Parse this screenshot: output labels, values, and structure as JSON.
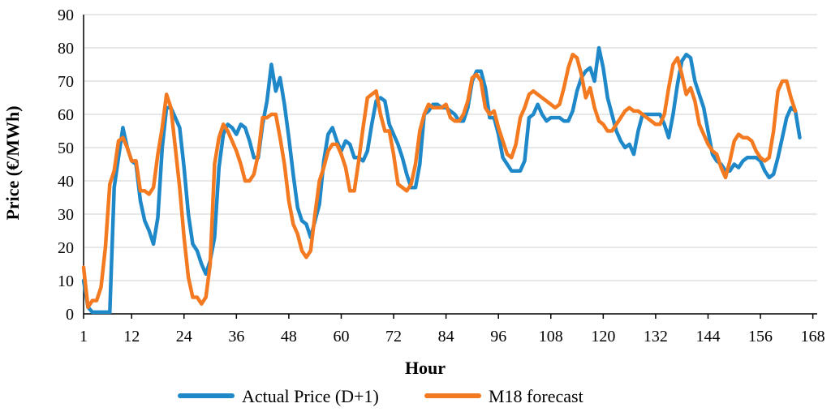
{
  "chart_data": {
    "type": "line",
    "title": "",
    "xlabel": "Hour",
    "ylabel": "Price (€/MWh)",
    "xlim": [
      1,
      169
    ],
    "ylim": [
      0,
      90
    ],
    "grid": true,
    "legend_position": "bottom",
    "x_ticks": [
      1,
      12,
      24,
      36,
      48,
      60,
      72,
      84,
      96,
      108,
      120,
      132,
      144,
      156,
      168
    ],
    "y_ticks": [
      0,
      10,
      20,
      30,
      40,
      50,
      60,
      70,
      80,
      90
    ],
    "x_tick_labels": [
      "1",
      "12",
      "24",
      "36",
      "48",
      "60",
      "72",
      "84",
      "96",
      "108",
      "120",
      "132",
      "144",
      "156",
      "168"
    ],
    "y_tick_labels": [
      "0",
      "10",
      "20",
      "30",
      "40",
      "50",
      "60",
      "70",
      "80",
      "90"
    ],
    "series": [
      {
        "name": "Actual Price (D+1)",
        "color": "#1f88c9",
        "points": [
          [
            1,
            10
          ],
          [
            2,
            2
          ],
          [
            3,
            0.5
          ],
          [
            4,
            0.5
          ],
          [
            5,
            0.5
          ],
          [
            6,
            0.5
          ],
          [
            7,
            0.5
          ],
          [
            8,
            38
          ],
          [
            9,
            47
          ],
          [
            10,
            56
          ],
          [
            11,
            50
          ],
          [
            12,
            46
          ],
          [
            13,
            45
          ],
          [
            14,
            34
          ],
          [
            15,
            28
          ],
          [
            16,
            25
          ],
          [
            17,
            21
          ],
          [
            18,
            29
          ],
          [
            19,
            50
          ],
          [
            20,
            62
          ],
          [
            21,
            62
          ],
          [
            22,
            59
          ],
          [
            23,
            56
          ],
          [
            24,
            44
          ],
          [
            25,
            30
          ],
          [
            26,
            21
          ],
          [
            27,
            19
          ],
          [
            28,
            15
          ],
          [
            29,
            12
          ],
          [
            30,
            16
          ],
          [
            31,
            23
          ],
          [
            32,
            44
          ],
          [
            33,
            54
          ],
          [
            34,
            57
          ],
          [
            35,
            56
          ],
          [
            36,
            54
          ],
          [
            37,
            57
          ],
          [
            38,
            56
          ],
          [
            39,
            52
          ],
          [
            40,
            47
          ],
          [
            41,
            47
          ],
          [
            42,
            57
          ],
          [
            43,
            64
          ],
          [
            44,
            75
          ],
          [
            45,
            67
          ],
          [
            46,
            71
          ],
          [
            47,
            63
          ],
          [
            48,
            53
          ],
          [
            49,
            42
          ],
          [
            50,
            32
          ],
          [
            51,
            28
          ],
          [
            52,
            27
          ],
          [
            53,
            23
          ],
          [
            54,
            28
          ],
          [
            55,
            33
          ],
          [
            56,
            46
          ],
          [
            57,
            54
          ],
          [
            58,
            56
          ],
          [
            59,
            52
          ],
          [
            60,
            49
          ],
          [
            61,
            52
          ],
          [
            62,
            51
          ],
          [
            63,
            47
          ],
          [
            64,
            47
          ],
          [
            65,
            46
          ],
          [
            66,
            49
          ],
          [
            67,
            57
          ],
          [
            68,
            64
          ],
          [
            69,
            65
          ],
          [
            70,
            64
          ],
          [
            71,
            57
          ],
          [
            72,
            54
          ],
          [
            73,
            51
          ],
          [
            74,
            47
          ],
          [
            75,
            42
          ],
          [
            76,
            38
          ],
          [
            77,
            38
          ],
          [
            78,
            45
          ],
          [
            79,
            60
          ],
          [
            80,
            61
          ],
          [
            81,
            63
          ],
          [
            82,
            63
          ],
          [
            83,
            62
          ],
          [
            84,
            62
          ],
          [
            85,
            61
          ],
          [
            86,
            60
          ],
          [
            87,
            58
          ],
          [
            88,
            58
          ],
          [
            89,
            62
          ],
          [
            90,
            70
          ],
          [
            91,
            73
          ],
          [
            92,
            73
          ],
          [
            93,
            68
          ],
          [
            94,
            59
          ],
          [
            95,
            59
          ],
          [
            96,
            54
          ],
          [
            97,
            47
          ],
          [
            98,
            45
          ],
          [
            99,
            43
          ],
          [
            100,
            43
          ],
          [
            101,
            43
          ],
          [
            102,
            46
          ],
          [
            103,
            59
          ],
          [
            104,
            60
          ],
          [
            105,
            63
          ],
          [
            106,
            60
          ],
          [
            107,
            58
          ],
          [
            108,
            59
          ],
          [
            109,
            59
          ],
          [
            110,
            59
          ],
          [
            111,
            58
          ],
          [
            112,
            58
          ],
          [
            113,
            61
          ],
          [
            114,
            67
          ],
          [
            115,
            71
          ],
          [
            116,
            73
          ],
          [
            117,
            74
          ],
          [
            118,
            70
          ],
          [
            119,
            80
          ],
          [
            120,
            74
          ],
          [
            121,
            65
          ],
          [
            122,
            60
          ],
          [
            123,
            55
          ],
          [
            124,
            52
          ],
          [
            125,
            50
          ],
          [
            126,
            51
          ],
          [
            127,
            48
          ],
          [
            128,
            55
          ],
          [
            129,
            60
          ],
          [
            130,
            60
          ],
          [
            131,
            60
          ],
          [
            132,
            60
          ],
          [
            133,
            60
          ],
          [
            134,
            57
          ],
          [
            135,
            53
          ],
          [
            136,
            60
          ],
          [
            137,
            69
          ],
          [
            138,
            76
          ],
          [
            139,
            78
          ],
          [
            140,
            77
          ],
          [
            141,
            70
          ],
          [
            142,
            66
          ],
          [
            143,
            62
          ],
          [
            144,
            55
          ],
          [
            145,
            48
          ],
          [
            146,
            46
          ],
          [
            147,
            45
          ],
          [
            148,
            43
          ],
          [
            149,
            43
          ],
          [
            150,
            45
          ],
          [
            151,
            44
          ],
          [
            152,
            46
          ],
          [
            153,
            47
          ],
          [
            154,
            47
          ],
          [
            155,
            47
          ],
          [
            156,
            46
          ],
          [
            157,
            43
          ],
          [
            158,
            41
          ],
          [
            159,
            42
          ],
          [
            160,
            47
          ],
          [
            161,
            53
          ],
          [
            162,
            59
          ],
          [
            163,
            62
          ],
          [
            164,
            61
          ],
          [
            165,
            53
          ]
        ]
      },
      {
        "name": "M18 forecast",
        "color": "#f47a21",
        "points": [
          [
            1,
            14
          ],
          [
            2,
            2
          ],
          [
            3,
            4
          ],
          [
            4,
            4
          ],
          [
            5,
            8
          ],
          [
            6,
            20
          ],
          [
            7,
            39
          ],
          [
            8,
            43
          ],
          [
            9,
            52
          ],
          [
            10,
            53
          ],
          [
            11,
            50
          ],
          [
            12,
            46
          ],
          [
            13,
            46
          ],
          [
            14,
            37
          ],
          [
            15,
            37
          ],
          [
            16,
            36
          ],
          [
            17,
            38
          ],
          [
            18,
            48
          ],
          [
            19,
            56
          ],
          [
            20,
            66
          ],
          [
            21,
            62
          ],
          [
            22,
            50
          ],
          [
            23,
            38
          ],
          [
            24,
            23
          ],
          [
            25,
            11
          ],
          [
            26,
            5
          ],
          [
            27,
            5
          ],
          [
            28,
            3
          ],
          [
            29,
            5
          ],
          [
            30,
            15
          ],
          [
            31,
            45
          ],
          [
            32,
            53
          ],
          [
            33,
            57
          ],
          [
            34,
            55
          ],
          [
            35,
            52
          ],
          [
            36,
            49
          ],
          [
            37,
            45
          ],
          [
            38,
            40
          ],
          [
            39,
            40
          ],
          [
            40,
            42
          ],
          [
            41,
            48
          ],
          [
            42,
            59
          ],
          [
            43,
            59
          ],
          [
            44,
            60
          ],
          [
            45,
            60
          ],
          [
            46,
            53
          ],
          [
            47,
            45
          ],
          [
            48,
            34
          ],
          [
            49,
            27
          ],
          [
            50,
            24
          ],
          [
            51,
            19
          ],
          [
            52,
            17
          ],
          [
            53,
            19
          ],
          [
            54,
            30
          ],
          [
            55,
            40
          ],
          [
            56,
            44
          ],
          [
            57,
            49
          ],
          [
            58,
            51
          ],
          [
            59,
            51
          ],
          [
            60,
            48
          ],
          [
            61,
            44
          ],
          [
            62,
            37
          ],
          [
            63,
            37
          ],
          [
            64,
            46
          ],
          [
            65,
            56
          ],
          [
            66,
            65
          ],
          [
            67,
            66
          ],
          [
            68,
            67
          ],
          [
            69,
            60
          ],
          [
            70,
            55
          ],
          [
            71,
            55
          ],
          [
            72,
            48
          ],
          [
            73,
            39
          ],
          [
            74,
            38
          ],
          [
            75,
            37
          ],
          [
            76,
            39
          ],
          [
            77,
            45
          ],
          [
            78,
            55
          ],
          [
            79,
            60
          ],
          [
            80,
            63
          ],
          [
            81,
            62
          ],
          [
            82,
            62
          ],
          [
            83,
            62
          ],
          [
            84,
            63
          ],
          [
            85,
            59
          ],
          [
            86,
            58
          ],
          [
            87,
            58
          ],
          [
            88,
            60
          ],
          [
            89,
            64
          ],
          [
            90,
            71
          ],
          [
            91,
            72
          ],
          [
            92,
            70
          ],
          [
            93,
            62
          ],
          [
            94,
            60
          ],
          [
            95,
            61
          ],
          [
            96,
            56
          ],
          [
            97,
            52
          ],
          [
            98,
            48
          ],
          [
            99,
            47
          ],
          [
            100,
            51
          ],
          [
            101,
            59
          ],
          [
            102,
            62
          ],
          [
            103,
            66
          ],
          [
            104,
            67
          ],
          [
            105,
            66
          ],
          [
            106,
            65
          ],
          [
            107,
            64
          ],
          [
            108,
            63
          ],
          [
            109,
            62
          ],
          [
            110,
            63
          ],
          [
            111,
            68
          ],
          [
            112,
            74
          ],
          [
            113,
            78
          ],
          [
            114,
            77
          ],
          [
            115,
            72
          ],
          [
            116,
            65
          ],
          [
            117,
            68
          ],
          [
            118,
            62
          ],
          [
            119,
            58
          ],
          [
            120,
            57
          ],
          [
            121,
            55
          ],
          [
            122,
            55
          ],
          [
            123,
            57
          ],
          [
            124,
            59
          ],
          [
            125,
            61
          ],
          [
            126,
            62
          ],
          [
            127,
            61
          ],
          [
            128,
            61
          ],
          [
            129,
            60
          ],
          [
            130,
            59
          ],
          [
            131,
            58
          ],
          [
            132,
            57
          ],
          [
            133,
            57
          ],
          [
            134,
            60
          ],
          [
            135,
            68
          ],
          [
            136,
            75
          ],
          [
            137,
            77
          ],
          [
            138,
            72
          ],
          [
            139,
            66
          ],
          [
            140,
            68
          ],
          [
            141,
            64
          ],
          [
            142,
            57
          ],
          [
            143,
            54
          ],
          [
            144,
            51
          ],
          [
            145,
            49
          ],
          [
            146,
            48
          ],
          [
            147,
            44
          ],
          [
            148,
            41
          ],
          [
            149,
            46
          ],
          [
            150,
            52
          ],
          [
            151,
            54
          ],
          [
            152,
            53
          ],
          [
            153,
            53
          ],
          [
            154,
            52
          ],
          [
            155,
            49
          ],
          [
            156,
            47
          ],
          [
            157,
            46
          ],
          [
            158,
            47
          ],
          [
            159,
            55
          ],
          [
            160,
            67
          ],
          [
            161,
            70
          ],
          [
            162,
            70
          ],
          [
            163,
            65
          ],
          [
            164,
            61
          ]
        ]
      }
    ]
  }
}
